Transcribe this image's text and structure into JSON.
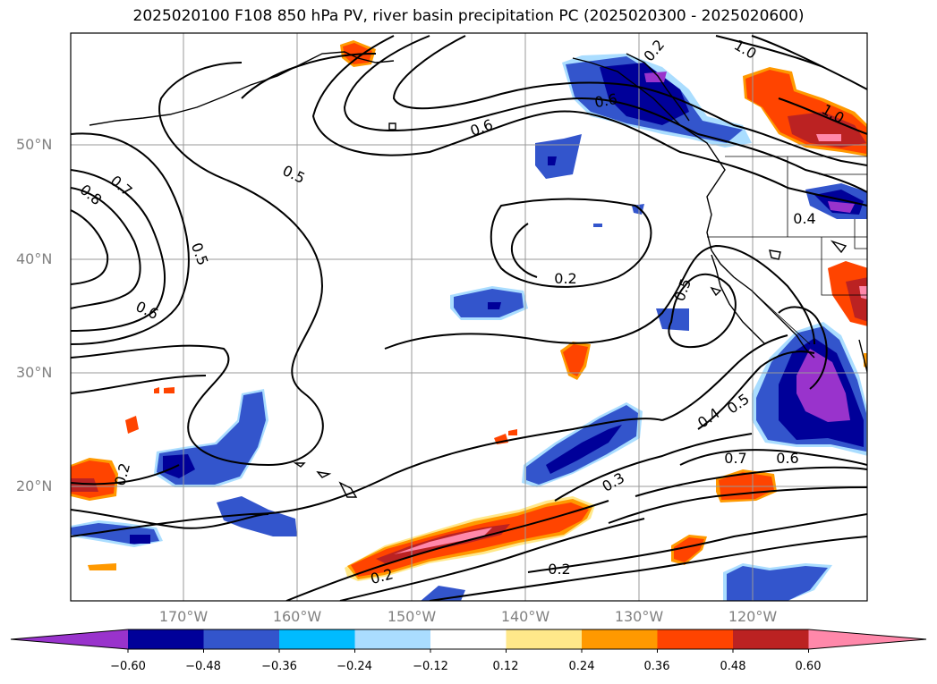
{
  "title": "2025020100 F108 850 hPa PV, river basin precipitation PC (2025020300 - 2025020600)",
  "lat_labels": [
    "50°N",
    "40°N",
    "30°N",
    "20°N"
  ],
  "lon_labels": [
    "170°W",
    "160°W",
    "150°W",
    "140°W",
    "130°W",
    "120°W"
  ],
  "contour_labels": [
    "0.2",
    "0.2",
    "0.2",
    "0.2",
    "0.3",
    "0.4",
    "0.4",
    "0.5",
    "0.5",
    "0.5",
    "0.5",
    "0.6",
    "0.6",
    "0.6",
    "0.7",
    "0.7",
    "0.8",
    "1.0",
    "1.0",
    "0.2",
    "0.6"
  ],
  "colorbar": {
    "ticks": [
      "−0.60",
      "−0.48",
      "−0.36",
      "−0.24",
      "−0.12",
      "0.12",
      "0.24",
      "0.36",
      "0.48",
      "0.60"
    ],
    "colors": [
      "#9933cc",
      "#000099",
      "#3355cc",
      "#00bbff",
      "#aaddff",
      "#ffffff",
      "#ffe88a",
      "#ff9900",
      "#ff4400",
      "#bb2222",
      "#ff88aa"
    ]
  },
  "colors": {
    "grid": "#999999",
    "contour": "#000000",
    "axis_label": "#808080"
  }
}
